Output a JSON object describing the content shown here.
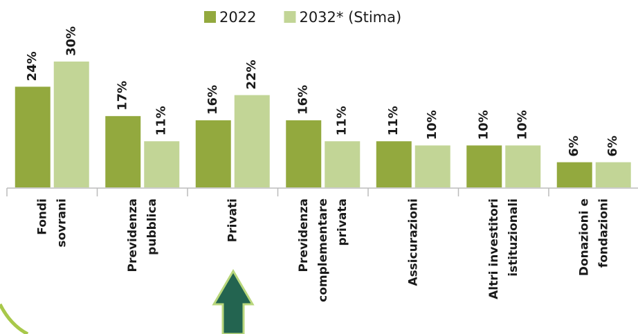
{
  "chart_data": {
    "type": "bar",
    "categories": [
      [
        "Fondi",
        "sovrani"
      ],
      [
        "Previdenza",
        "pubblica"
      ],
      [
        "Privati"
      ],
      [
        "Previdenza",
        "complementare",
        "privata"
      ],
      [
        "Assicurazioni"
      ],
      [
        "Altri investitori",
        "istituzionali"
      ],
      [
        "Donazioni e",
        "fondazioni"
      ]
    ],
    "series": [
      {
        "name": "2022",
        "color": "#93a93e",
        "values": [
          24,
          17,
          16,
          16,
          11,
          10,
          6
        ],
        "value_labels": [
          "24%",
          "17%",
          "16%",
          "16%",
          "11%",
          "10%",
          "6%"
        ]
      },
      {
        "name": "2032* (Stima)",
        "color": "#c2d596",
        "values": [
          30,
          11,
          22,
          11,
          10,
          10,
          6
        ],
        "value_labels": [
          "30%",
          "11%",
          "22%",
          "11%",
          "10%",
          "10%",
          "6%"
        ]
      }
    ],
    "ylim": [
      0,
      30
    ],
    "legend": "top"
  }
}
